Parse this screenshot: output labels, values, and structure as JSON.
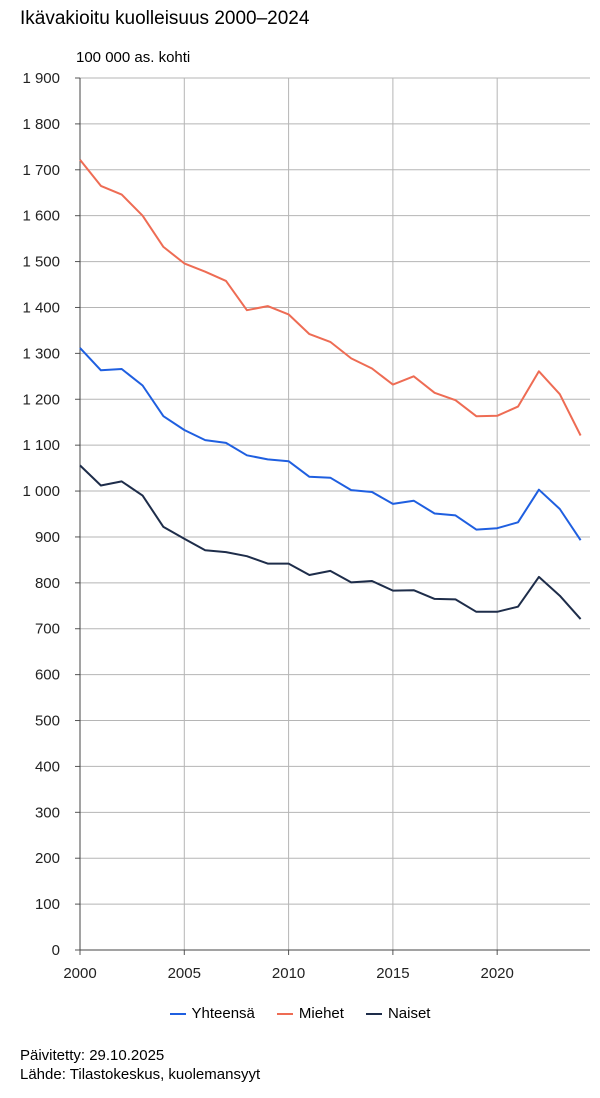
{
  "chart_data": {
    "type": "line",
    "title": "Ikävakioitu kuolleisuus 2000–2024",
    "ylabel": "100 000 as. kohti",
    "xlabel": "",
    "x": [
      2000,
      2001,
      2002,
      2003,
      2004,
      2005,
      2006,
      2007,
      2008,
      2009,
      2010,
      2011,
      2012,
      2013,
      2014,
      2015,
      2016,
      2017,
      2018,
      2019,
      2020,
      2021,
      2022,
      2023,
      2024
    ],
    "xlim": [
      2000,
      2024.45
    ],
    "ylim": [
      0,
      1900
    ],
    "x_ticks": [
      2000,
      2005,
      2010,
      2015,
      2020
    ],
    "x_tick_labels": [
      "2000",
      "2005",
      "2010",
      "2015",
      "2020"
    ],
    "y_ticks": [
      0,
      100,
      200,
      300,
      400,
      500,
      600,
      700,
      800,
      900,
      1000,
      1100,
      1200,
      1300,
      1400,
      1500,
      1600,
      1700,
      1800,
      1900
    ],
    "y_tick_labels": [
      "0",
      "100",
      "200",
      "300",
      "400",
      "500",
      "600",
      "700",
      "800",
      "900",
      "1 000",
      "1 100",
      "1 200",
      "1 300",
      "1 400",
      "1 500",
      "1 600",
      "1 700",
      "1 800",
      "1 900"
    ],
    "grid": true,
    "legend_position": "bottom",
    "series": [
      {
        "name": "Yhteensä",
        "color": "#1f5fe0",
        "values": [
          1312,
          1263,
          1266,
          1230,
          1163,
          1133,
          1111,
          1105,
          1078,
          1069,
          1065,
          1031,
          1029,
          1002,
          998,
          972,
          979,
          951,
          947,
          916,
          919,
          932,
          1003,
          961,
          893
        ]
      },
      {
        "name": "Miehet",
        "color": "#ee6c54",
        "values": [
          1722,
          1665,
          1646,
          1600,
          1532,
          1496,
          1478,
          1458,
          1394,
          1403,
          1385,
          1342,
          1325,
          1289,
          1267,
          1232,
          1250,
          1214,
          1198,
          1163,
          1164,
          1184,
          1261,
          1211,
          1121
        ]
      },
      {
        "name": "Naiset",
        "color": "#1e2d4a",
        "values": [
          1056,
          1012,
          1021,
          990,
          922,
          896,
          871,
          867,
          858,
          842,
          842,
          817,
          826,
          801,
          804,
          783,
          784,
          765,
          764,
          737,
          737,
          748,
          813,
          772,
          721
        ]
      }
    ]
  },
  "footer": {
    "updated": "Päivitetty: 29.10.2025",
    "source": "Lähde: Tilastokeskus, kuolemansyyt"
  }
}
